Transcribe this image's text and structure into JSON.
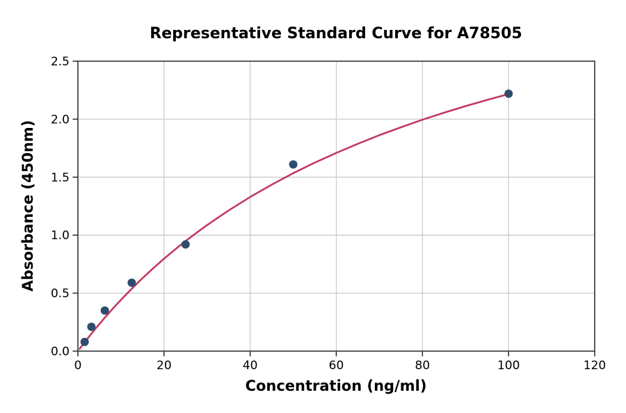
{
  "figure": {
    "title": "Representative Standard Curve for A78505"
  },
  "chart_data": {
    "type": "scatter",
    "title": "Representative Standard Curve for A78505",
    "xlabel": "Concentration (ng/ml)",
    "ylabel": "Absorbance (450nm)",
    "xlim": [
      0,
      120
    ],
    "ylim": [
      0,
      2.5
    ],
    "xticks": [
      0,
      20,
      40,
      60,
      80,
      100,
      120
    ],
    "xtick_labels": [
      "0",
      "20",
      "40",
      "60",
      "80",
      "100",
      "120"
    ],
    "yticks": [
      0,
      0.5,
      1.0,
      1.5,
      2.0,
      2.5
    ],
    "ytick_labels": [
      "0.0",
      "0.5",
      "1.0",
      "1.5",
      "2.0",
      "2.5"
    ],
    "grid": true,
    "legend": false,
    "points": {
      "name": "standards",
      "x": [
        1.56,
        3.13,
        6.25,
        12.5,
        25,
        50,
        100
      ],
      "y": [
        0.08,
        0.21,
        0.35,
        0.59,
        0.92,
        1.61,
        2.22
      ]
    },
    "fit_curve": {
      "name": "fitted-standard-curve",
      "x": [
        0.4,
        1,
        2,
        3,
        4,
        5,
        6,
        7,
        8,
        9,
        10,
        11,
        12.5,
        14,
        15,
        17.5,
        20,
        22.5,
        25,
        27.5,
        30,
        35,
        40,
        45,
        50,
        55,
        60,
        65,
        70,
        75,
        80,
        85,
        90,
        95,
        100
      ],
      "y": [
        0.02,
        0.049,
        0.097,
        0.144,
        0.19,
        0.234,
        0.278,
        0.32,
        0.362,
        0.403,
        0.442,
        0.481,
        0.538,
        0.593,
        0.629,
        0.715,
        0.797,
        0.875,
        0.949,
        1.019,
        1.087,
        1.213,
        1.329,
        1.435,
        1.534,
        1.625,
        1.709,
        1.788,
        1.862,
        1.93,
        1.995,
        2.056,
        2.113,
        2.166,
        2.217
      ]
    },
    "colors": {
      "curve": "#C23A60",
      "points": "#2E4D6E",
      "grid": "#CCCCCC",
      "spine": "#4A4A4A",
      "tick": "#333333",
      "text": "#000000"
    }
  }
}
